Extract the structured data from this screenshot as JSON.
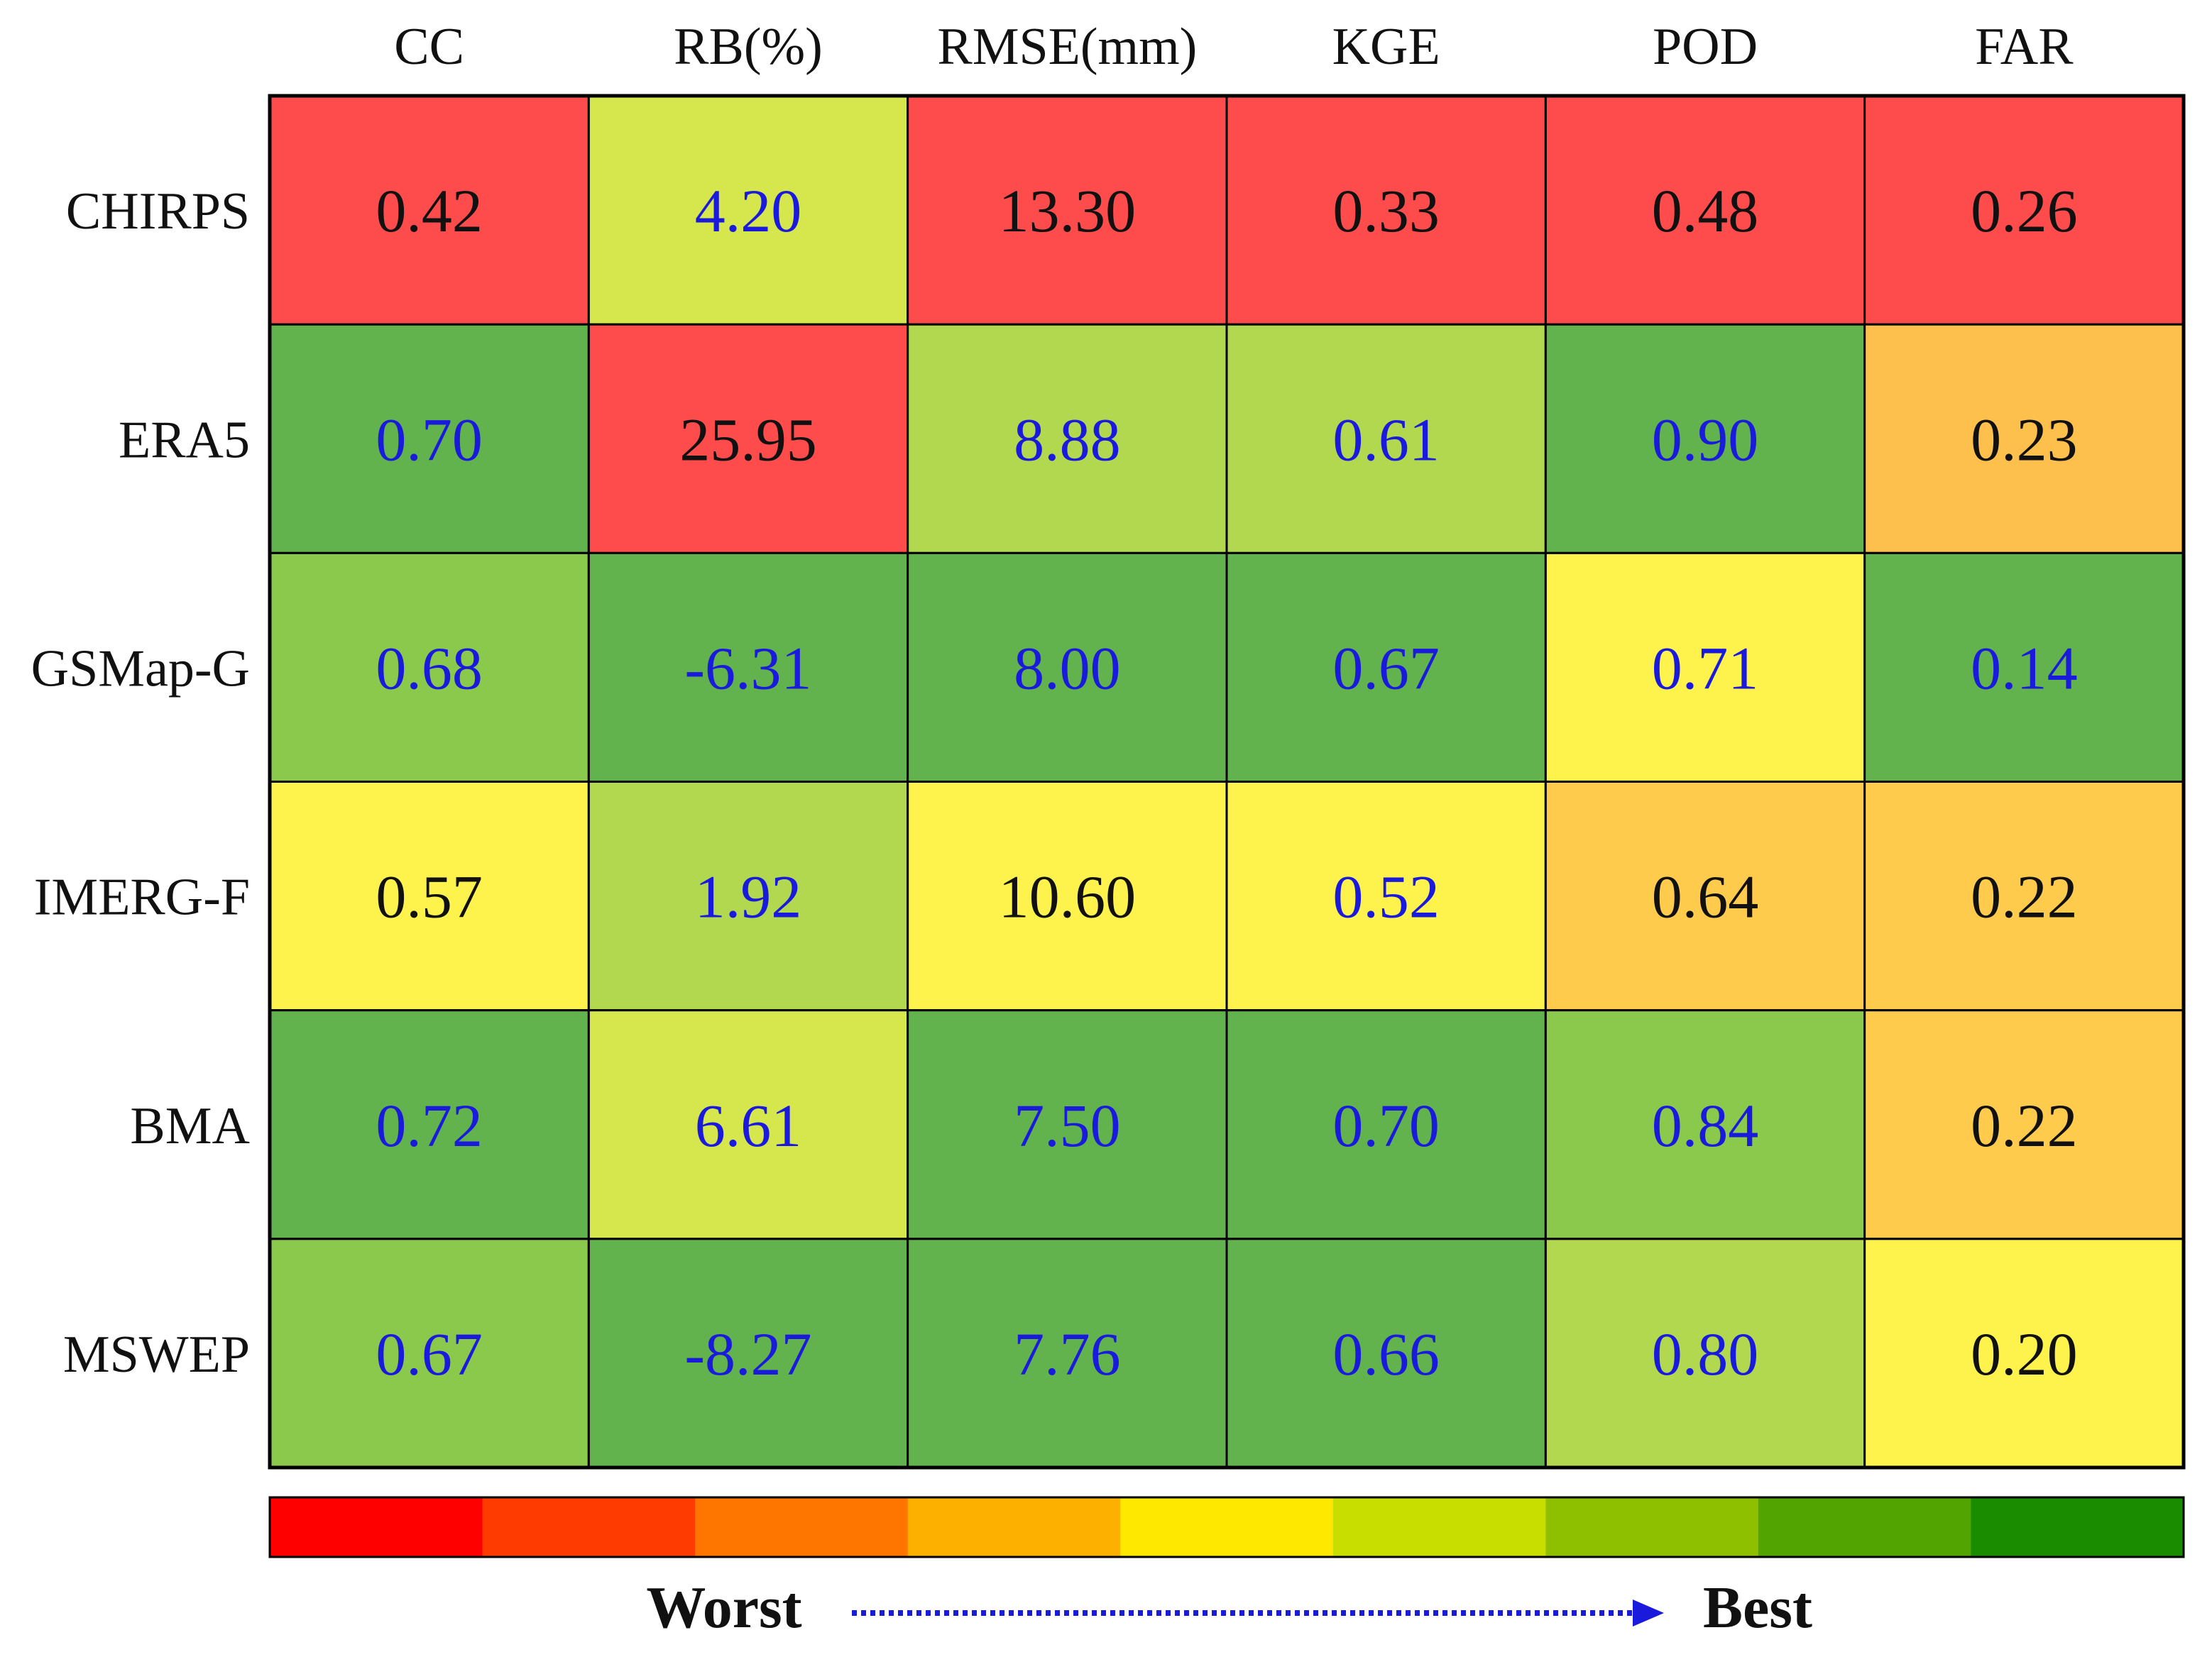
{
  "chart_data": {
    "type": "heatmap",
    "columns": [
      "CC",
      "RB(%)",
      "RMSE(mm)",
      "KGE",
      "POD",
      "FAR"
    ],
    "rows": [
      "CHIRPS",
      "ERA5",
      "GSMap-G",
      "IMERG-F",
      "BMA",
      "MSWEP"
    ],
    "values": [
      [
        "0.42",
        "4.20",
        "13.30",
        "0.33",
        "0.48",
        "0.26"
      ],
      [
        "0.70",
        "25.95",
        "8.88",
        "0.61",
        "0.90",
        "0.23"
      ],
      [
        "0.68",
        "-6.31",
        "8.00",
        "0.67",
        "0.71",
        "0.14"
      ],
      [
        "0.57",
        "1.92",
        "10.60",
        "0.52",
        "0.64",
        "0.22"
      ],
      [
        "0.72",
        "6.61",
        "7.50",
        "0.70",
        "0.84",
        "0.22"
      ],
      [
        "0.67",
        "-8.27",
        "7.76",
        "0.66",
        "0.80",
        "0.20"
      ]
    ],
    "rank_levels": [
      [
        0,
        5,
        0,
        0,
        0,
        0
      ],
      [
        8,
        0,
        6,
        6,
        8,
        2
      ],
      [
        7,
        8,
        8,
        8,
        4,
        8
      ],
      [
        4,
        6,
        4,
        4,
        3,
        3
      ],
      [
        8,
        5,
        8,
        8,
        7,
        3
      ],
      [
        7,
        8,
        8,
        8,
        6,
        4
      ]
    ],
    "cell_colors": [
      "#fe4b4b",
      "#ff9b45",
      "#fec04c",
      "#ffcb4d",
      "#fef34d",
      "#d6e64d",
      "#b2d84f",
      "#8bc94d",
      "#62b34d"
    ],
    "blue_values": [
      [
        false,
        true,
        false,
        false,
        false,
        false
      ],
      [
        true,
        false,
        true,
        true,
        true,
        false
      ],
      [
        true,
        true,
        true,
        true,
        true,
        true
      ],
      [
        false,
        true,
        false,
        true,
        false,
        false
      ],
      [
        true,
        true,
        true,
        true,
        true,
        false
      ],
      [
        true,
        true,
        true,
        true,
        true,
        false
      ]
    ],
    "text_colors": {
      "default": "#111111",
      "highlight": "#1a1adc"
    },
    "colorbar": {
      "colors": [
        "#fe0000",
        "#fe3b00",
        "#fe7500",
        "#feb000",
        "#fee800",
        "#c8dd00",
        "#8fc000",
        "#52a500",
        "#1a8c00"
      ],
      "left_label": "Worst",
      "right_label": "Best",
      "arrow_color": "#1a1adc"
    }
  }
}
